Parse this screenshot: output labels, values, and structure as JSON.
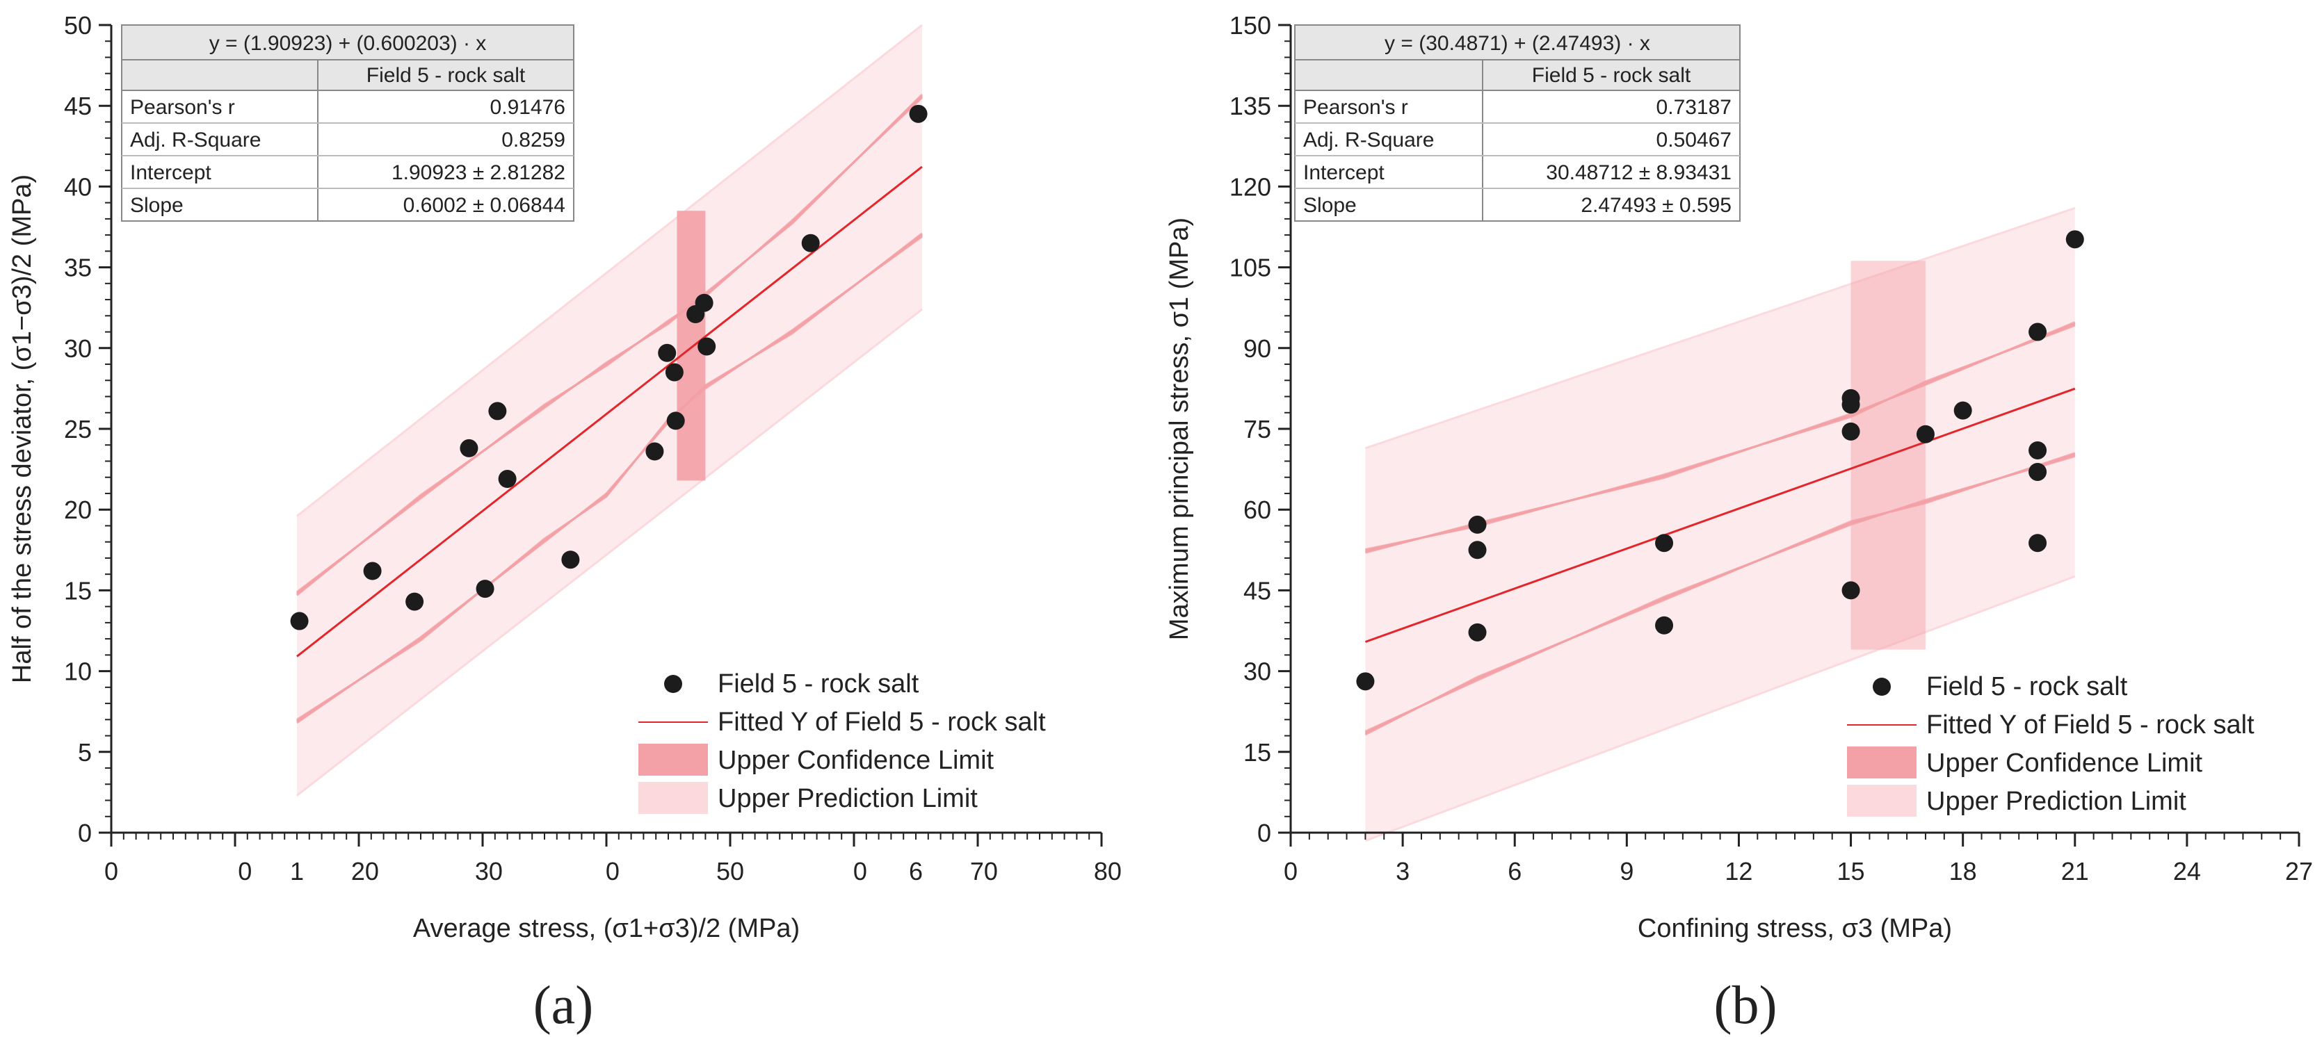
{
  "colors": {
    "fit": "#e3262b",
    "confidence": "#f3a0a6",
    "prediction": "#fbd9dc",
    "point": "#1c1c1c",
    "axis": "#222222"
  },
  "chart_data": [
    {
      "type": "scatter",
      "panel_label": "(a)",
      "xlabel": "Average stress, (σ1+σ3)/2 (MPa)",
      "ylabel": "Half of the stress deviator, (σ1−σ3)/2 (MPa)",
      "xlim": [
        0,
        80
      ],
      "ylim": [
        0,
        50
      ],
      "xtick_values": [
        0,
        10,
        20,
        30,
        40,
        50,
        60,
        70,
        80
      ],
      "xtick_labels": [
        "0",
        "0",
        "1",
        "20",
        "30",
        "0",
        "50",
        "0",
        "6",
        "70",
        "80"
      ],
      "xtick_label_positions": [
        0,
        10.8,
        15,
        20.5,
        30.5,
        40.5,
        50,
        60.5,
        65,
        70.5,
        80.5
      ],
      "ytick_values": [
        0,
        5,
        10,
        15,
        20,
        25,
        30,
        35,
        40,
        45,
        50
      ],
      "ytick_labels": [
        "0",
        "5",
        "10",
        "15",
        "20",
        "25",
        "30",
        "35",
        "40",
        "45",
        "50"
      ],
      "series": [
        {
          "name": "Field 5 - rock salt",
          "points": [
            [
              15.2,
              13.1
            ],
            [
              21.1,
              16.2
            ],
            [
              24.5,
              14.3
            ],
            [
              28.9,
              23.8
            ],
            [
              30.2,
              15.1
            ],
            [
              31.2,
              26.1
            ],
            [
              32.0,
              21.9
            ],
            [
              37.1,
              16.9
            ],
            [
              43.9,
              23.6
            ],
            [
              44.9,
              29.7
            ],
            [
              45.5,
              28.5
            ],
            [
              45.6,
              25.5
            ],
            [
              47.2,
              32.1
            ],
            [
              47.9,
              32.8
            ],
            [
              48.1,
              30.1
            ],
            [
              56.5,
              36.5
            ],
            [
              65.2,
              44.5
            ]
          ]
        }
      ],
      "fit": {
        "intercept": 1.90923,
        "slope": 0.600203,
        "x_range": [
          15,
          65.5
        ]
      },
      "confidence_band": {
        "x": [
          15,
          25,
          35,
          40,
          45,
          48,
          55,
          65.5
        ],
        "upper": [
          14.8,
          20.8,
          26.4,
          29.0,
          31.6,
          33.3,
          37.8,
          45.6
        ],
        "lower": [
          6.9,
          12.0,
          18.1,
          20.9,
          25.5,
          27.6,
          31.0,
          37.0
        ]
      },
      "prediction_band": {
        "x": [
          15,
          65.5
        ],
        "upper": [
          19.6,
          50.0
        ],
        "lower": [
          2.3,
          32.4
        ]
      },
      "highlight_band": {
        "x": [
          45.7,
          48.0
        ],
        "y": [
          21.8,
          38.5
        ]
      },
      "legend": [
        {
          "kind": "marker",
          "label": "Field 5 - rock salt"
        },
        {
          "kind": "line",
          "label": "Fitted Y of Field 5 - rock salt"
        },
        {
          "kind": "confidence",
          "label": "Upper Confidence Limit"
        },
        {
          "kind": "prediction",
          "label": "Upper Prediction Limit"
        }
      ],
      "stats_table": {
        "equation": "y = (1.90923) + (0.600203) · x",
        "column_header": "Field 5 - rock salt",
        "rows": [
          {
            "label": "Pearson's r",
            "value": "0.91476"
          },
          {
            "label": "Adj. R-Square",
            "value": "0.8259"
          },
          {
            "label": "Intercept",
            "value": "1.90923 ± 2.81282"
          },
          {
            "label": "Slope",
            "value": "0.6002 ± 0.06844"
          }
        ]
      }
    },
    {
      "type": "scatter",
      "panel_label": "(b)",
      "xlabel": "Confining stress, σ3 (MPa)",
      "ylabel": "Maximum principal stress, σ1 (MPa)",
      "xlim": [
        0,
        27
      ],
      "ylim": [
        0,
        150
      ],
      "xtick_values": [
        0,
        3,
        6,
        9,
        12,
        15,
        18,
        21,
        24,
        27
      ],
      "xtick_labels": [
        "0",
        "3",
        "6",
        "9",
        "12",
        "15",
        "18",
        "21",
        "24",
        "27"
      ],
      "xtick_label_positions": [
        0,
        3,
        6,
        9,
        12,
        15,
        18,
        21,
        24,
        27
      ],
      "ytick_values": [
        0,
        15,
        30,
        45,
        60,
        75,
        90,
        105,
        120,
        135,
        150
      ],
      "ytick_labels": [
        "0",
        "15",
        "30",
        "45",
        "60",
        "75",
        "90",
        "105",
        "120",
        "135",
        "150"
      ],
      "series": [
        {
          "name": "Field 5 - rock salt",
          "points": [
            [
              2,
              28.1
            ],
            [
              5,
              37.2
            ],
            [
              5,
              52.5
            ],
            [
              5,
              57.2
            ],
            [
              10,
              38.5
            ],
            [
              10,
              53.8
            ],
            [
              15,
              45.0
            ],
            [
              15,
              74.5
            ],
            [
              15,
              79.5
            ],
            [
              15,
              80.7
            ],
            [
              17,
              74.0
            ],
            [
              18,
              78.4
            ],
            [
              20,
              53.8
            ],
            [
              20,
              67.0
            ],
            [
              20,
              71.0
            ],
            [
              20,
              93.0
            ],
            [
              21,
              110.2
            ]
          ]
        }
      ],
      "fit": {
        "intercept": 30.4871,
        "slope": 2.47493,
        "x_range": [
          2,
          21
        ]
      },
      "confidence_band": {
        "x": [
          2,
          5,
          10,
          15,
          17,
          21
        ],
        "upper": [
          52.3,
          57.2,
          66.2,
          77.5,
          83.5,
          94.5
        ],
        "lower": [
          18.5,
          28.6,
          43.5,
          57.5,
          61.5,
          70.2
        ]
      },
      "prediction_band": {
        "x": [
          2,
          21
        ],
        "upper": [
          71.4,
          116.0
        ],
        "lower": [
          -1.5,
          47.6
        ]
      },
      "highlight_band": {
        "x": [
          15,
          17
        ],
        "y": [
          34.0,
          106.2
        ]
      },
      "legend": [
        {
          "kind": "marker",
          "label": "Field 5 - rock salt"
        },
        {
          "kind": "line",
          "label": "Fitted Y of Field 5 - rock salt"
        },
        {
          "kind": "confidence",
          "label": "Upper Confidence Limit"
        },
        {
          "kind": "prediction",
          "label": "Upper Prediction Limit"
        }
      ],
      "stats_table": {
        "equation": "y = (30.4871) + (2.47493) · x",
        "column_header": "Field 5 - rock salt",
        "rows": [
          {
            "label": "Pearson's r",
            "value": "0.73187"
          },
          {
            "label": "Adj. R-Square",
            "value": "0.50467"
          },
          {
            "label": "Intercept",
            "value": "30.48712 ± 8.93431"
          },
          {
            "label": "Slope",
            "value": "2.47493 ± 0.595"
          }
        ]
      }
    }
  ]
}
